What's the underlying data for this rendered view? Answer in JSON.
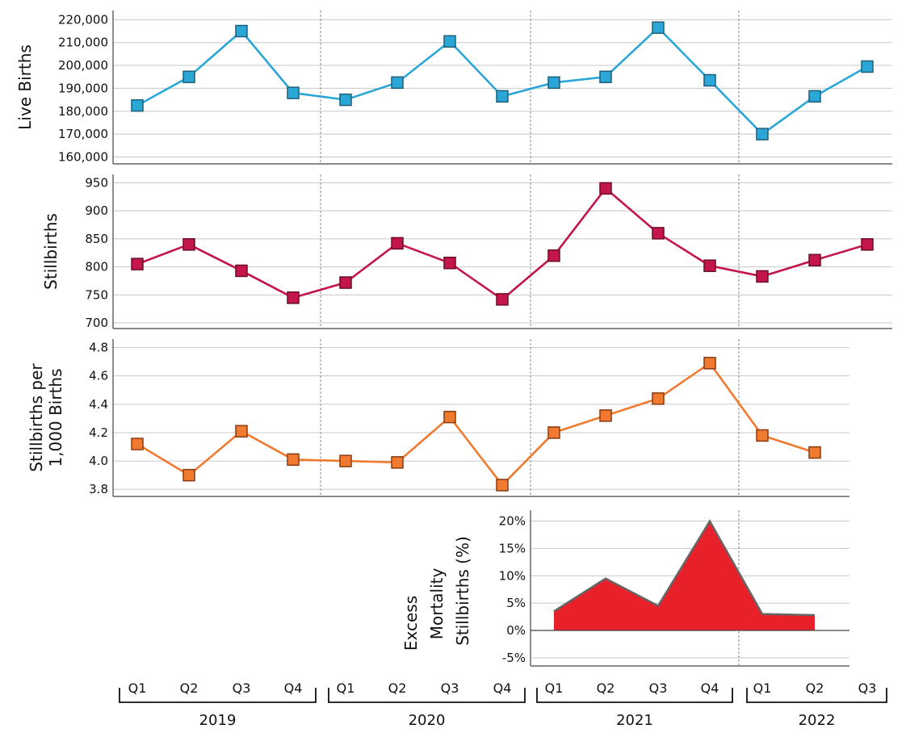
{
  "chart_data": [
    {
      "type": "line",
      "ylabel": "Live Births",
      "ylim": [
        157000,
        224000
      ],
      "yticks": [
        160000,
        170000,
        180000,
        190000,
        200000,
        210000,
        220000
      ],
      "ytick_labels": [
        "160,000",
        "170,000",
        "180,000",
        "190,000",
        "200,000",
        "210,000",
        "220,000"
      ],
      "color": "#2aa7d6",
      "x": [
        "2019 Q1",
        "2019 Q2",
        "2019 Q3",
        "2019 Q4",
        "2020 Q1",
        "2020 Q2",
        "2020 Q3",
        "2020 Q4",
        "2021 Q1",
        "2021 Q2",
        "2021 Q3",
        "2021 Q4",
        "2022 Q1",
        "2022 Q2",
        "2022 Q3"
      ],
      "values": [
        182500,
        195000,
        215000,
        188000,
        185000,
        192500,
        210500,
        186500,
        192500,
        195000,
        216500,
        193500,
        170000,
        186500,
        199500
      ]
    },
    {
      "type": "line",
      "ylabel": "Stillbirths",
      "ylim": [
        690,
        965
      ],
      "yticks": [
        700,
        750,
        800,
        850,
        900,
        950
      ],
      "ytick_labels": [
        "700",
        "750",
        "800",
        "850",
        "900",
        "950"
      ],
      "color": "#c4164a",
      "x": [
        "2019 Q1",
        "2019 Q2",
        "2019 Q3",
        "2019 Q4",
        "2020 Q1",
        "2020 Q2",
        "2020 Q3",
        "2020 Q4",
        "2021 Q1",
        "2021 Q2",
        "2021 Q3",
        "2021 Q4",
        "2022 Q1",
        "2022 Q2",
        "2022 Q3"
      ],
      "values": [
        805,
        840,
        793,
        745,
        772,
        842,
        807,
        742,
        820,
        940,
        860,
        802,
        783,
        812,
        840
      ]
    },
    {
      "type": "line",
      "ylabel_lines": [
        "Stillbirths per",
        "1,000 Births"
      ],
      "ylim": [
        3.75,
        4.86
      ],
      "yticks": [
        3.8,
        4.0,
        4.2,
        4.4,
        4.6,
        4.8
      ],
      "ytick_labels": [
        "3.8",
        "4.0",
        "4.2",
        "4.4",
        "4.6",
        "4.8"
      ],
      "color": "#f07a30",
      "x": [
        "2019 Q1",
        "2019 Q2",
        "2019 Q3",
        "2019 Q4",
        "2020 Q1",
        "2020 Q2",
        "2020 Q3",
        "2020 Q4",
        "2021 Q1",
        "2021 Q2",
        "2021 Q3",
        "2021 Q4",
        "2022 Q1",
        "2022 Q2"
      ],
      "values": [
        4.12,
        3.9,
        4.21,
        4.01,
        4.0,
        3.99,
        4.31,
        3.83,
        4.2,
        4.32,
        4.44,
        4.69,
        4.18,
        4.06
      ]
    },
    {
      "type": "area",
      "ylabel_lines": [
        "Excess",
        "Mortality",
        "Stillbirths (%)"
      ],
      "ylim": [
        -6.5,
        22
      ],
      "yticks": [
        -5,
        0,
        5,
        10,
        15,
        20
      ],
      "ytick_labels": [
        "-5%",
        "0%",
        "5%",
        "10%",
        "15%",
        "20%"
      ],
      "color": "#e8202a",
      "x": [
        "2021 Q1",
        "2021 Q2",
        "2021 Q3",
        "2021 Q4",
        "2022 Q1",
        "2022 Q2"
      ],
      "values": [
        3.5,
        9.5,
        4.5,
        20.0,
        3.0,
        2.8
      ]
    }
  ],
  "x_axis": {
    "quarters": [
      "Q1",
      "Q2",
      "Q3",
      "Q4",
      "Q1",
      "Q2",
      "Q3",
      "Q4",
      "Q1",
      "Q2",
      "Q3",
      "Q4",
      "Q1",
      "Q2",
      "Q3"
    ],
    "years": [
      "2019",
      "2020",
      "2021",
      "2022"
    ]
  }
}
